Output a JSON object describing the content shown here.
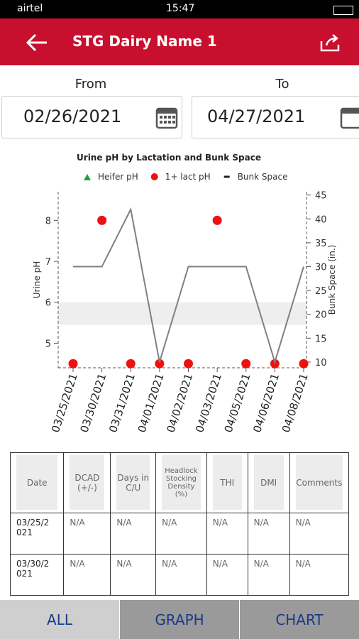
{
  "status_bar": {
    "carrier": "airtel",
    "time": "15:47"
  },
  "header": {
    "title": "STG Dairy Name 1"
  },
  "filters": {
    "from_label": "From",
    "from_value": "02/26/2021",
    "to_label": "To",
    "to_value": "04/27/2021"
  },
  "chart_data": {
    "type": "scatter-line",
    "title": "Urine pH by Lactation and Bunk Space",
    "categories": [
      "03/25/2021",
      "03/30/2021",
      "03/31/2021",
      "04/01/2021",
      "04/02/2021",
      "04/03/2021",
      "04/05/2021",
      "04/06/2021",
      "04/08/2021"
    ],
    "ylabel": "Urine pH",
    "y2label": "Bunk Space (in.)",
    "ylim": [
      4.4,
      8.7
    ],
    "yticks": [
      5,
      6,
      7,
      8
    ],
    "y2lim": [
      8.8,
      45.7
    ],
    "y2ticks": [
      10,
      15,
      20,
      25,
      30,
      35,
      40,
      45
    ],
    "target_band": [
      5.45,
      6.0
    ],
    "series": [
      {
        "name": "Heifer pH",
        "color": "#1aa33c",
        "marker": "triangle",
        "values": [
          null,
          null,
          null,
          null,
          null,
          null,
          null,
          null,
          null
        ]
      },
      {
        "name": "1+ lact pH",
        "color": "#ee1111",
        "marker": "circle",
        "values": [
          4.5,
          8,
          4.5,
          4.5,
          4.5,
          8,
          4.5,
          4.5,
          4.5
        ]
      },
      {
        "name": "Bunk Space",
        "color": "#808080",
        "marker": "line",
        "axis": "y2",
        "values": [
          30,
          30,
          42,
          10,
          30,
          30,
          30,
          10,
          30
        ]
      }
    ]
  },
  "table": {
    "headers": [
      "Date",
      "DCAD (+/-)",
      "Days in C/U",
      "Headlock Stocking Density (%)",
      "THI",
      "DMI",
      "Comments"
    ],
    "rows": [
      [
        "03/25/2021",
        "N/A",
        "N/A",
        "N/A",
        "N/A",
        "N/A",
        "N/A"
      ],
      [
        "03/30/2021",
        "N/A",
        "N/A",
        "N/A",
        "N/A",
        "N/A",
        "N/A"
      ]
    ]
  },
  "tabs": [
    "ALL",
    "GRAPH",
    "CHART"
  ]
}
